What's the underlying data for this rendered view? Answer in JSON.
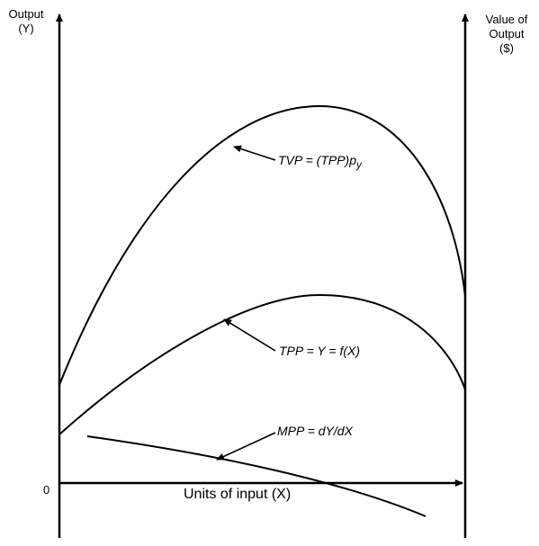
{
  "axes": {
    "left_label_line1": "Output",
    "left_label_line2": "(Y)",
    "right_label_line1": "Value of",
    "right_label_line2": "Output",
    "right_label_line3": "($)",
    "origin_label": "0",
    "x_label": "Units of input (X)"
  },
  "curves": {
    "tvp": {
      "label": "TVP = (TPP)p",
      "subscript": "y"
    },
    "tpp": {
      "label": "TPP = Y = f(X)"
    },
    "mpp": {
      "label": "MPP = dY/dX"
    }
  },
  "colors": {
    "ink": "#000000",
    "background": "#ffffff"
  }
}
